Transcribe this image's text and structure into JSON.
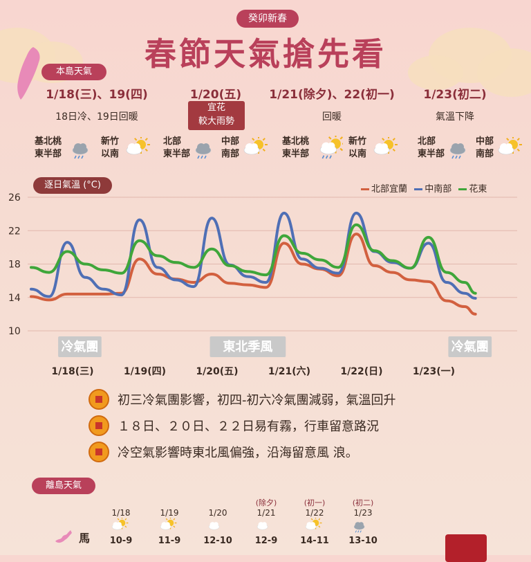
{
  "header": {
    "subtitle": "癸卯新春",
    "title": "春節天氣搶先看",
    "island_label": "本島天氣"
  },
  "forecast": [
    {
      "date": "1/18(三)、19(四)",
      "desc": "18日冷、19日回暖",
      "left": {
        "r1": "基北桃",
        "r2": "東半部",
        "icon": "cloud-rain-icon"
      },
      "right": {
        "r1": "新竹",
        "r2": "以南",
        "icon": "sun-cloud-icon"
      }
    },
    {
      "date": "1/20(五)",
      "alert1": "宜花",
      "alert2": "較大雨勢",
      "left": {
        "r1": "北部",
        "r2": "東半部",
        "icon": "cloud-rain-icon"
      },
      "right": {
        "r1": "中部",
        "r2": "南部",
        "icon": "sun-cloud-icon"
      }
    },
    {
      "date": "1/21(除夕)、22(初一)",
      "desc": "回暖",
      "left": {
        "r1": "基北桃",
        "r2": "東半部",
        "icon": "sun-cloud-rain-icon"
      },
      "right": {
        "r1": "新竹",
        "r2": "以南",
        "icon": "sun-cloud-icon"
      }
    },
    {
      "date": "1/23(初二)",
      "desc": "氣溫下降",
      "left": {
        "r1": "北部",
        "r2": "東半部",
        "icon": "cloud-rain-icon"
      },
      "right": {
        "r1": "中部",
        "r2": "南部",
        "icon": "sun-cloud-icon"
      }
    }
  ],
  "chart_data": {
    "type": "line",
    "title": "逐日氣溫 (°C)",
    "ylim": [
      10,
      26
    ],
    "yticks": [
      10,
      14,
      18,
      22,
      26
    ],
    "x_labels": [
      "1/18(三)",
      "1/19(四)",
      "1/20(五)",
      "1/21(六)",
      "1/22(日)",
      "1/23(一)"
    ],
    "x": [
      0,
      0.25,
      0.5,
      0.75,
      1,
      1.25,
      1.5,
      1.75,
      2,
      2.25,
      2.5,
      2.75,
      3,
      3.25,
      3.5,
      3.75,
      4,
      4.25,
      4.5,
      4.75,
      5,
      5.25,
      5.5,
      5.75
    ],
    "series": [
      {
        "name": "北部宜蘭",
        "color": "#d2603f",
        "values": [
          14.1,
          13.7,
          14.4,
          14.4,
          14.4,
          14.5,
          18.6,
          16.8,
          16.2,
          15.8,
          16.8,
          15.7,
          15.5,
          15.2,
          20.5,
          18.0,
          17.4,
          16.6,
          21.6,
          17.8,
          17.0,
          16.1,
          15.9,
          13.6
        ]
      },
      {
        "name": "中南部",
        "color": "#4f6fb5",
        "values": [
          15.0,
          14.1,
          20.6,
          16.4,
          15.0,
          14.3,
          23.3,
          17.6,
          16.1,
          15.3,
          23.5,
          17.9,
          16.5,
          15.8,
          24.1,
          18.6,
          17.5,
          16.9,
          24.1,
          19.5,
          18.2,
          17.5,
          20.5,
          15.8
        ]
      },
      {
        "name": "花東",
        "color": "#3fa63a",
        "values": [
          17.6,
          17.0,
          19.5,
          18.0,
          17.3,
          16.9,
          20.8,
          19.0,
          18.2,
          17.6,
          19.8,
          17.8,
          17.1,
          16.7,
          21.4,
          19.3,
          18.5,
          17.6,
          22.7,
          19.6,
          18.4,
          17.5,
          21.2,
          17.0
        ]
      }
    ],
    "tail": {
      "x": [
        6.0,
        6.15
      ],
      "values": [
        [
          12.9,
          12.0
        ],
        [
          14.5,
          13.9
        ],
        [
          15.8,
          14.5
        ]
      ]
    },
    "bands": [
      {
        "label": "冷氣團",
        "x0": -0.2,
        "x1": 0.4
      },
      {
        "label": "東北季風",
        "x0": 1.9,
        "x1": 2.95
      },
      {
        "label": "冷氣團",
        "x0": 5.2,
        "x1": 5.8
      }
    ]
  },
  "notes": [
    "初三冷氣團影響，初四-初六冷氣團減弱，氣溫回升",
    "１８日、２０日、２２日易有霧，行車留意路況",
    "冷空氣影響時東北風偏強，沿海留意風 浪。"
  ],
  "outer_islands": {
    "label": "離島天氣",
    "island_name": "馬",
    "days": [
      {
        "extra": "",
        "date": "1/18",
        "temp": "10-9",
        "icon": "sun-cloud-icon"
      },
      {
        "extra": "",
        "date": "1/19",
        "temp": "11-9",
        "icon": "sun-cloud-icon"
      },
      {
        "extra": "",
        "date": "1/20",
        "temp": "12-10",
        "icon": "cloud-icon"
      },
      {
        "extra": "(除夕)",
        "date": "1/21",
        "temp": "12-9",
        "icon": "cloud-icon"
      },
      {
        "extra": "(初一)",
        "date": "1/22",
        "temp": "14-11",
        "icon": "sun-cloud-icon"
      },
      {
        "extra": "(初二)",
        "date": "1/23",
        "temp": "13-10",
        "icon": "cloud-rain-icon"
      }
    ]
  }
}
